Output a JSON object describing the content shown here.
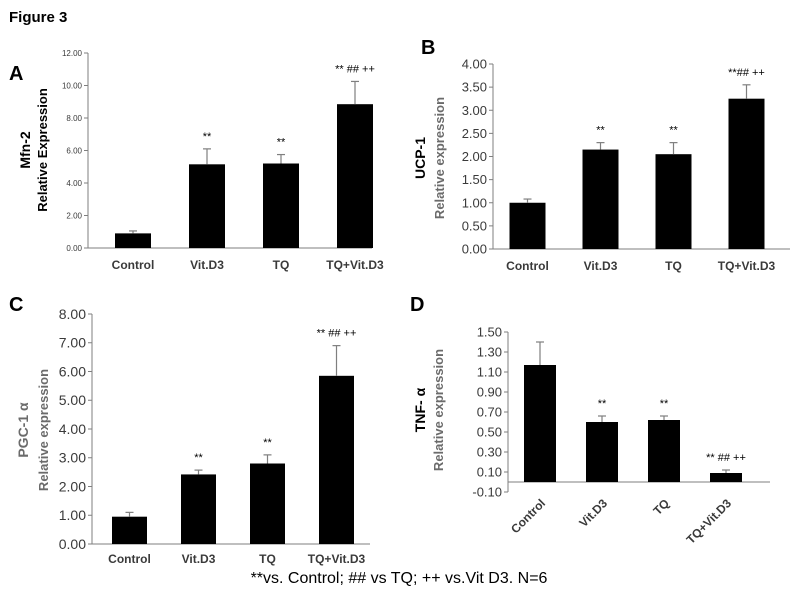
{
  "figure_title": "Figure 3",
  "footnote": "**vs. Control; ## vs TQ; ++ vs.Vit D3. N=6",
  "chart_data": [
    {
      "panel": "A",
      "type": "bar",
      "categories": [
        "Control",
        "Vit.D3",
        "TQ",
        "TQ+Vit.D3"
      ],
      "values": [
        0.9,
        5.15,
        5.2,
        8.85
      ],
      "errors": [
        0.15,
        0.95,
        0.55,
        1.4
      ],
      "annotations": [
        "",
        "**",
        "**",
        "** ## ++"
      ],
      "ylabel": [
        "Mfn-2",
        "Relative Expression"
      ],
      "ylim": [
        0,
        12
      ],
      "yticks": [
        "0.00",
        "2.00",
        "4.00",
        "6.00",
        "8.00",
        "10.00",
        "12.00"
      ],
      "grid": false
    },
    {
      "panel": "B",
      "type": "bar",
      "categories": [
        "Control",
        "Vit.D3",
        "TQ",
        "TQ+Vit.D3"
      ],
      "values": [
        1.0,
        2.15,
        2.05,
        3.25
      ],
      "errors": [
        0.08,
        0.15,
        0.25,
        0.3
      ],
      "annotations": [
        "",
        "**",
        "**",
        "**## ++"
      ],
      "ylabel": [
        "UCP-1",
        "Relative expression"
      ],
      "ylim": [
        0,
        4
      ],
      "yticks": [
        "0.00",
        "0.50",
        "1.00",
        "1.50",
        "2.00",
        "2.50",
        "3.00",
        "3.50",
        "4.00"
      ],
      "grid": false
    },
    {
      "panel": "C",
      "type": "bar",
      "categories": [
        "Control",
        "Vit.D3",
        "TQ",
        "TQ+Vit.D3"
      ],
      "values": [
        0.95,
        2.42,
        2.8,
        5.85
      ],
      "errors": [
        0.15,
        0.15,
        0.3,
        1.05
      ],
      "annotations": [
        "",
        "**",
        "**",
        "** ## ++"
      ],
      "ylabel": [
        "PGC-1 α",
        "Relative expression"
      ],
      "ylim": [
        0,
        8
      ],
      "yticks": [
        "0.00",
        "1.00",
        "2.00",
        "3.00",
        "4.00",
        "5.00",
        "6.00",
        "7.00",
        "8.00"
      ],
      "grid": false
    },
    {
      "panel": "D",
      "type": "bar",
      "categories": [
        "Control",
        "Vit.D3",
        "TQ",
        "TQ+Vit.D3"
      ],
      "values": [
        1.17,
        0.6,
        0.62,
        0.09
      ],
      "errors": [
        0.23,
        0.06,
        0.04,
        0.03
      ],
      "annotations": [
        "",
        "**",
        "**",
        "** ## ++"
      ],
      "ylabel": [
        "TNF- α",
        "Relative expression"
      ],
      "ylim": [
        -0.1,
        1.5
      ],
      "yticks": [
        "-0.10",
        "0.10",
        "0.30",
        "0.50",
        "0.70",
        "0.90",
        "1.10",
        "1.30",
        "1.50"
      ],
      "grid": false
    }
  ],
  "colors": {
    "bar": "#000000",
    "error_bar": "#7f7f7f",
    "axis": "#7f7f7f",
    "tick_text": "#3a3a3a"
  }
}
